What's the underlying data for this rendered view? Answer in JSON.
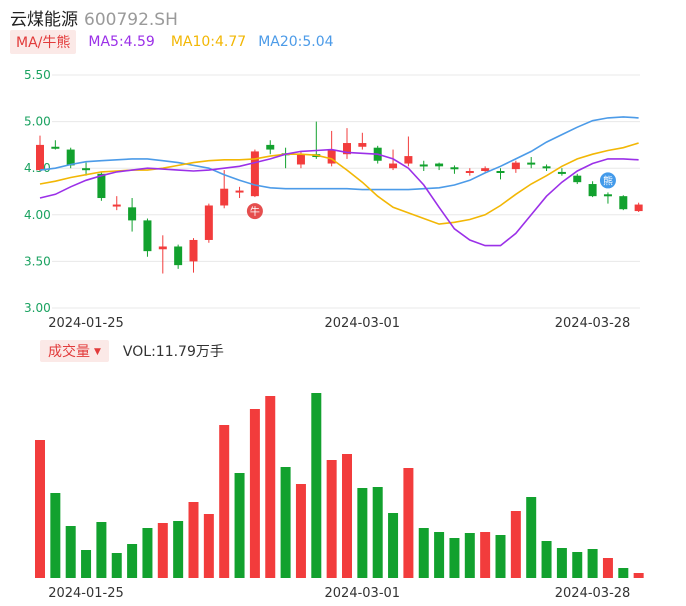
{
  "header": {
    "name": "云煤能源",
    "code": "600792.SH"
  },
  "ma_bar": {
    "selector_label": "MA/牛熊",
    "ma5": {
      "label": "MA5:4.59",
      "color": "#9b30e8"
    },
    "ma10": {
      "label": "MA10:4.77",
      "color": "#f2b705"
    },
    "ma20": {
      "label": "MA20:5.04",
      "color": "#4c9be8"
    }
  },
  "volume_bar": {
    "selector_label": "成交量",
    "vol_label": "VOL:11.79万手"
  },
  "colors": {
    "up": "#f23c3c",
    "down": "#12a12e",
    "grid": "#e8e8e8",
    "axis_text": "#1aa260"
  },
  "chart_data": [
    {
      "type": "candlestick",
      "y_ticks": [
        "5.50",
        "5.00",
        "4.50",
        "4.00",
        "3.50",
        "3.00"
      ],
      "ylim": [
        3.0,
        5.5
      ],
      "x_tick_labels": [
        {
          "index": 0,
          "label": "2024-01-25"
        },
        {
          "index": 18,
          "label": "2024-03-01"
        },
        {
          "index": 33,
          "label": "2024-03-28"
        }
      ],
      "candles": [
        {
          "o": 4.48,
          "c": 4.75,
          "h": 4.85,
          "l": 4.47
        },
        {
          "o": 4.73,
          "c": 4.71,
          "h": 4.8,
          "l": 4.7
        },
        {
          "o": 4.7,
          "c": 4.53,
          "h": 4.72,
          "l": 4.5
        },
        {
          "o": 4.5,
          "c": 4.48,
          "h": 4.56,
          "l": 4.42
        },
        {
          "o": 4.44,
          "c": 4.18,
          "h": 4.46,
          "l": 4.15
        },
        {
          "o": 4.11,
          "c": 4.11,
          "h": 4.2,
          "l": 4.05
        },
        {
          "o": 4.08,
          "c": 3.94,
          "h": 4.18,
          "l": 3.82
        },
        {
          "o": 3.94,
          "c": 3.61,
          "h": 3.96,
          "l": 3.55
        },
        {
          "o": 3.63,
          "c": 3.66,
          "h": 3.78,
          "l": 3.37
        },
        {
          "o": 3.66,
          "c": 3.46,
          "h": 3.68,
          "l": 3.42
        },
        {
          "o": 3.5,
          "c": 3.73,
          "h": 3.75,
          "l": 3.38
        },
        {
          "o": 3.73,
          "c": 4.1,
          "h": 4.12,
          "l": 3.7
        },
        {
          "o": 4.1,
          "c": 4.28,
          "h": 4.48,
          "l": 4.07
        },
        {
          "o": 4.26,
          "c": 4.26,
          "h": 4.3,
          "l": 4.18
        },
        {
          "o": 4.2,
          "c": 4.68,
          "h": 4.7,
          "l": 4.19
        },
        {
          "o": 4.75,
          "c": 4.7,
          "h": 4.8,
          "l": 4.65
        },
        {
          "o": 4.66,
          "c": 4.64,
          "h": 4.72,
          "l": 4.5
        },
        {
          "o": 4.54,
          "c": 4.65,
          "h": 4.68,
          "l": 4.5
        },
        {
          "o": 4.65,
          "c": 4.62,
          "h": 5.0,
          "l": 4.6
        },
        {
          "o": 4.55,
          "c": 4.7,
          "h": 4.9,
          "l": 4.52
        },
        {
          "o": 4.65,
          "c": 4.77,
          "h": 4.93,
          "l": 4.6
        },
        {
          "o": 4.73,
          "c": 4.77,
          "h": 4.88,
          "l": 4.7
        },
        {
          "o": 4.72,
          "c": 4.58,
          "h": 4.74,
          "l": 4.55
        },
        {
          "o": 4.5,
          "c": 4.55,
          "h": 4.7,
          "l": 4.48
        },
        {
          "o": 4.55,
          "c": 4.63,
          "h": 4.84,
          "l": 4.52
        },
        {
          "o": 4.54,
          "c": 4.53,
          "h": 4.58,
          "l": 4.47
        },
        {
          "o": 4.55,
          "c": 4.52,
          "h": 4.56,
          "l": 4.48
        },
        {
          "o": 4.51,
          "c": 4.49,
          "h": 4.53,
          "l": 4.44
        },
        {
          "o": 4.47,
          "c": 4.47,
          "h": 4.5,
          "l": 4.42
        },
        {
          "o": 4.47,
          "c": 4.5,
          "h": 4.52,
          "l": 4.46
        },
        {
          "o": 4.47,
          "c": 4.46,
          "h": 4.5,
          "l": 4.38
        },
        {
          "o": 4.49,
          "c": 4.56,
          "h": 4.58,
          "l": 4.45
        },
        {
          "o": 4.56,
          "c": 4.54,
          "h": 4.62,
          "l": 4.5
        },
        {
          "o": 4.52,
          "c": 4.5,
          "h": 4.54,
          "l": 4.47
        },
        {
          "o": 4.46,
          "c": 4.45,
          "h": 4.5,
          "l": 4.42
        },
        {
          "o": 4.42,
          "c": 4.35,
          "h": 4.44,
          "l": 4.33
        },
        {
          "o": 4.33,
          "c": 4.2,
          "h": 4.36,
          "l": 4.19
        },
        {
          "o": 4.22,
          "c": 4.2,
          "h": 4.24,
          "l": 4.12
        },
        {
          "o": 4.2,
          "c": 4.06,
          "h": 4.21,
          "l": 4.05
        },
        {
          "o": 4.04,
          "c": 4.11,
          "h": 4.13,
          "l": 4.03
        }
      ],
      "ma5": [
        4.18,
        4.22,
        4.3,
        4.37,
        4.42,
        4.46,
        4.48,
        4.5,
        4.49,
        4.48,
        4.47,
        4.48,
        4.5,
        4.52,
        4.56,
        4.6,
        4.65,
        4.68,
        4.69,
        4.7,
        4.67,
        4.66,
        4.65,
        4.6,
        4.5,
        4.32,
        4.08,
        3.85,
        3.73,
        3.67,
        3.67,
        3.8,
        4.0,
        4.2,
        4.35,
        4.47,
        4.55,
        4.6,
        4.6,
        4.59
      ],
      "ma10": [
        4.33,
        4.36,
        4.4,
        4.43,
        4.46,
        4.47,
        4.48,
        4.48,
        4.5,
        4.53,
        4.56,
        4.58,
        4.59,
        4.59,
        4.6,
        4.63,
        4.65,
        4.65,
        4.64,
        4.6,
        4.48,
        4.35,
        4.2,
        4.08,
        4.02,
        3.96,
        3.9,
        3.92,
        3.95,
        4.0,
        4.1,
        4.22,
        4.33,
        4.42,
        4.52,
        4.6,
        4.65,
        4.69,
        4.72,
        4.77
      ],
      "ma20": [
        4.48,
        4.5,
        4.54,
        4.57,
        4.58,
        4.59,
        4.6,
        4.6,
        4.58,
        4.56,
        4.53,
        4.5,
        4.43,
        4.37,
        4.32,
        4.29,
        4.28,
        4.28,
        4.28,
        4.28,
        4.28,
        4.27,
        4.27,
        4.27,
        4.27,
        4.28,
        4.29,
        4.32,
        4.37,
        4.45,
        4.52,
        4.6,
        4.68,
        4.78,
        4.86,
        4.94,
        5.01,
        5.04,
        5.05,
        5.04
      ],
      "markers": [
        {
          "index": 14,
          "glyph": "牛",
          "color": "#e23b3b"
        },
        {
          "index": 37,
          "glyph": "熊",
          "color": "#2f8fe8"
        }
      ]
    },
    {
      "type": "bar",
      "series": [
        {
          "values": [
            138,
            85,
            52,
            28,
            56,
            25,
            34,
            50,
            55,
            57,
            76,
            64,
            153,
            105,
            169,
            182,
            111,
            94,
            185,
            118,
            124,
            90,
            91,
            65,
            110,
            50,
            46,
            40,
            45,
            46,
            43,
            67,
            81,
            37,
            30,
            26,
            29,
            20,
            10,
            5
          ],
          "colors": [
            "up",
            "down",
            "down",
            "down",
            "down",
            "down",
            "down",
            "down",
            "up",
            "down",
            "up",
            "up",
            "up",
            "down",
            "up",
            "up",
            "down",
            "up",
            "down",
            "up",
            "up",
            "down",
            "down",
            "down",
            "up",
            "down",
            "down",
            "down",
            "down",
            "up",
            "down",
            "up",
            "down",
            "down",
            "down",
            "down",
            "down",
            "up",
            "down",
            "up"
          ]
        }
      ],
      "x_tick_labels": [
        {
          "index": 0,
          "label": "2024-01-25"
        },
        {
          "index": 18,
          "label": "2024-03-01"
        },
        {
          "index": 33,
          "label": "2024-03-28"
        }
      ]
    }
  ]
}
